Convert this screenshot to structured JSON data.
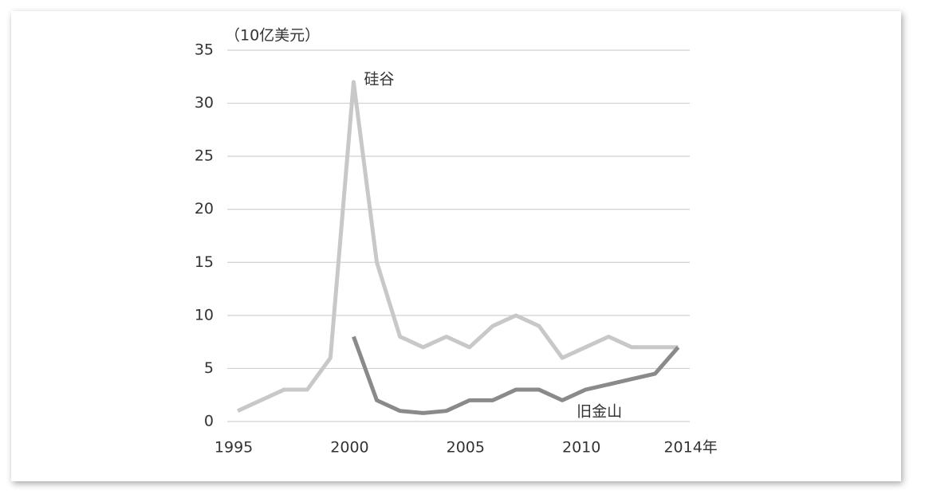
{
  "chart_data": {
    "type": "line",
    "y_label": "（10亿美元）",
    "x": [
      1995,
      1996,
      1997,
      1998,
      1999,
      2000,
      2001,
      2002,
      2003,
      2004,
      2005,
      2006,
      2007,
      2008,
      2009,
      2010,
      2011,
      2012,
      2013,
      2014
    ],
    "series": [
      {
        "name": "硅谷",
        "color": "#c8c8c8",
        "values": [
          1,
          2,
          3,
          3,
          6,
          32,
          15,
          8,
          7,
          8,
          7,
          9,
          10,
          9,
          6,
          7,
          8,
          7,
          7,
          7
        ]
      },
      {
        "name": "旧金山",
        "color": "#8a8a8a",
        "values": [
          null,
          null,
          null,
          null,
          null,
          8,
          2,
          1,
          0.8,
          1,
          2,
          2,
          3,
          3,
          2,
          3,
          3.5,
          4,
          4.5,
          7
        ]
      }
    ],
    "xlim": [
      1994.55,
      2014.5
    ],
    "xticks": [
      1995,
      2000,
      2005,
      2010,
      {
        "value": 2014,
        "label": "2014年"
      }
    ],
    "ylim": [
      0,
      35
    ],
    "yticks": [
      0,
      5,
      10,
      15,
      20,
      25,
      30,
      35
    ],
    "grid": true
  }
}
